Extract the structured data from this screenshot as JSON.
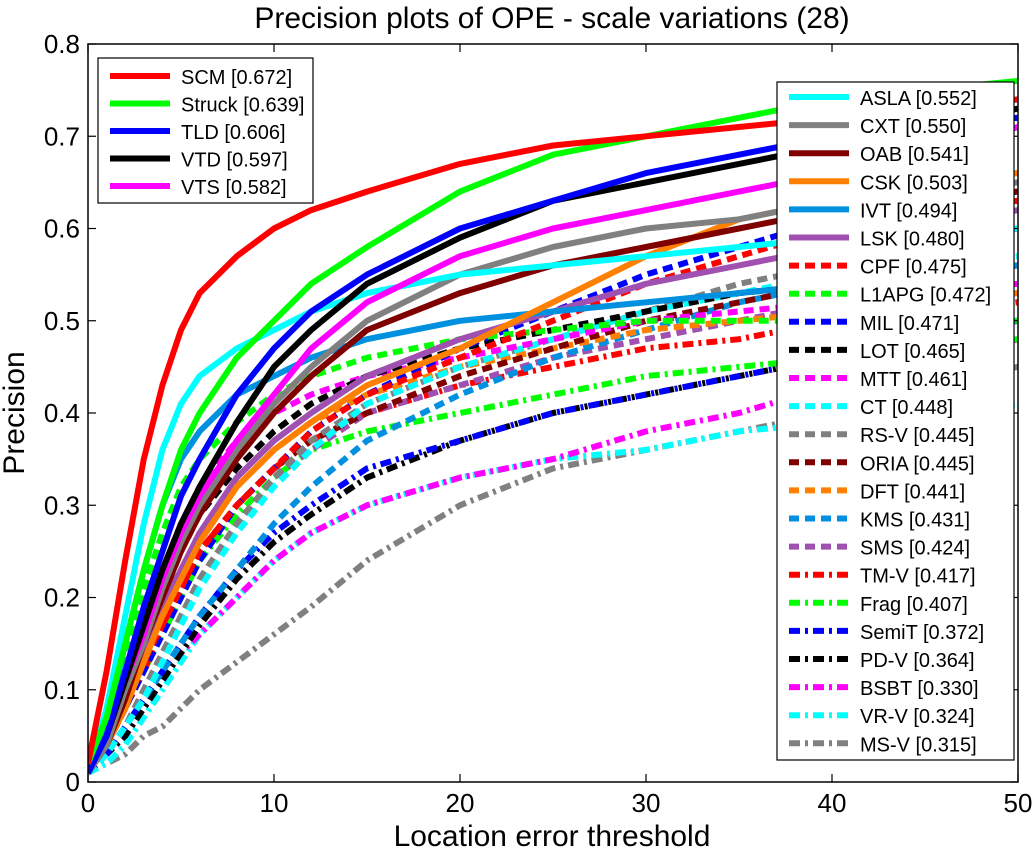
{
  "chart_data": {
    "type": "line",
    "title": "Precision plots of OPE - scale variations (28)",
    "xlabel": "Location error threshold",
    "ylabel": "Precision",
    "xlim": [
      0,
      50
    ],
    "ylim": [
      0,
      0.8
    ],
    "xticks": [
      "0",
      "10",
      "20",
      "30",
      "40",
      "50"
    ],
    "yticks": [
      "0",
      "0.1",
      "0.2",
      "0.3",
      "0.4",
      "0.5",
      "0.6",
      "0.7",
      "0.8"
    ],
    "legend_left": "top-left",
    "legend_right": "top-right",
    "x": [
      0,
      1,
      2,
      3,
      4,
      5,
      6,
      8,
      10,
      12,
      15,
      20,
      25,
      30,
      35,
      40,
      45,
      50
    ],
    "series": [
      {
        "name": "SCM",
        "legend": "SCM [0.672]",
        "color": "#ff0000",
        "style": "solid",
        "values": [
          0.02,
          0.12,
          0.24,
          0.35,
          0.43,
          0.49,
          0.53,
          0.57,
          0.6,
          0.62,
          0.64,
          0.67,
          0.69,
          0.7,
          0.71,
          0.72,
          0.73,
          0.74
        ]
      },
      {
        "name": "Struck",
        "legend": "Struck [0.639]",
        "color": "#00ff00",
        "style": "solid",
        "values": [
          0.02,
          0.07,
          0.15,
          0.23,
          0.3,
          0.36,
          0.4,
          0.46,
          0.5,
          0.54,
          0.58,
          0.64,
          0.68,
          0.7,
          0.72,
          0.74,
          0.75,
          0.76
        ]
      },
      {
        "name": "TLD",
        "legend": "TLD [0.606]",
        "color": "#0000ff",
        "style": "solid",
        "values": [
          0.01,
          0.05,
          0.12,
          0.19,
          0.25,
          0.31,
          0.35,
          0.42,
          0.47,
          0.51,
          0.55,
          0.6,
          0.63,
          0.66,
          0.68,
          0.7,
          0.71,
          0.72
        ]
      },
      {
        "name": "VTD",
        "legend": "VTD [0.597]",
        "color": "#000000",
        "style": "solid",
        "values": [
          0.01,
          0.05,
          0.11,
          0.17,
          0.23,
          0.28,
          0.32,
          0.39,
          0.45,
          0.49,
          0.54,
          0.59,
          0.63,
          0.65,
          0.67,
          0.69,
          0.71,
          0.73
        ]
      },
      {
        "name": "VTS",
        "legend": "VTS [0.582]",
        "color": "#ff00ff",
        "style": "solid",
        "values": [
          0.01,
          0.05,
          0.11,
          0.16,
          0.22,
          0.27,
          0.31,
          0.37,
          0.42,
          0.47,
          0.52,
          0.57,
          0.6,
          0.62,
          0.64,
          0.66,
          0.68,
          0.71
        ]
      },
      {
        "name": "ASLA",
        "legend": "ASLA [0.552]",
        "color": "#00ffff",
        "style": "solid",
        "values": [
          0.01,
          0.08,
          0.18,
          0.28,
          0.36,
          0.41,
          0.44,
          0.47,
          0.49,
          0.51,
          0.53,
          0.55,
          0.56,
          0.57,
          0.58,
          0.59,
          0.6,
          0.6
        ]
      },
      {
        "name": "CXT",
        "legend": "CXT [0.550]",
        "color": "#808080",
        "style": "solid",
        "values": [
          0.01,
          0.04,
          0.1,
          0.15,
          0.21,
          0.26,
          0.3,
          0.36,
          0.41,
          0.45,
          0.5,
          0.55,
          0.58,
          0.6,
          0.61,
          0.63,
          0.64,
          0.65
        ]
      },
      {
        "name": "OAB",
        "legend": "OAB [0.541]",
        "color": "#800000",
        "style": "solid",
        "values": [
          0.01,
          0.04,
          0.09,
          0.15,
          0.2,
          0.25,
          0.29,
          0.35,
          0.4,
          0.44,
          0.49,
          0.53,
          0.56,
          0.58,
          0.6,
          0.62,
          0.63,
          0.64
        ]
      },
      {
        "name": "CSK",
        "legend": "CSK [0.503]",
        "color": "#ff8000",
        "style": "solid",
        "values": [
          0.01,
          0.04,
          0.08,
          0.13,
          0.18,
          0.22,
          0.26,
          0.32,
          0.36,
          0.39,
          0.43,
          0.47,
          0.52,
          0.57,
          0.61,
          0.63,
          0.65,
          0.66
        ]
      },
      {
        "name": "IVT",
        "legend": "IVT [0.494]",
        "color": "#0090e0",
        "style": "solid",
        "values": [
          0.01,
          0.06,
          0.15,
          0.23,
          0.3,
          0.35,
          0.38,
          0.42,
          0.44,
          0.46,
          0.48,
          0.5,
          0.51,
          0.52,
          0.53,
          0.54,
          0.55,
          0.56
        ]
      },
      {
        "name": "LSK",
        "legend": "LSK [0.480]",
        "color": "#a050b0",
        "style": "solid",
        "values": [
          0.01,
          0.04,
          0.09,
          0.14,
          0.19,
          0.23,
          0.27,
          0.33,
          0.37,
          0.4,
          0.44,
          0.48,
          0.51,
          0.54,
          0.56,
          0.58,
          0.6,
          0.62
        ]
      },
      {
        "name": "CPF",
        "legend": "CPF [0.475]",
        "color": "#ff0000",
        "style": "dash",
        "values": [
          0.01,
          0.04,
          0.08,
          0.13,
          0.17,
          0.21,
          0.25,
          0.3,
          0.34,
          0.38,
          0.42,
          0.46,
          0.5,
          0.54,
          0.57,
          0.6,
          0.62,
          0.63
        ]
      },
      {
        "name": "L1APG",
        "legend": "L1APG [0.472]",
        "color": "#00ff00",
        "style": "dash",
        "values": [
          0.01,
          0.06,
          0.14,
          0.21,
          0.27,
          0.32,
          0.35,
          0.39,
          0.42,
          0.44,
          0.46,
          0.48,
          0.49,
          0.5,
          0.5,
          0.5,
          0.5,
          0.5
        ]
      },
      {
        "name": "MIL",
        "legend": "MIL [0.471]",
        "color": "#0000ff",
        "style": "dash",
        "values": [
          0.01,
          0.04,
          0.08,
          0.12,
          0.16,
          0.2,
          0.24,
          0.3,
          0.34,
          0.38,
          0.42,
          0.47,
          0.51,
          0.55,
          0.58,
          0.61,
          0.63,
          0.64
        ]
      },
      {
        "name": "LOT",
        "legend": "LOT [0.465]",
        "color": "#000000",
        "style": "dash",
        "values": [
          0.01,
          0.05,
          0.1,
          0.15,
          0.2,
          0.25,
          0.29,
          0.34,
          0.38,
          0.41,
          0.44,
          0.47,
          0.49,
          0.51,
          0.53,
          0.54,
          0.55,
          0.56
        ]
      },
      {
        "name": "MTT",
        "legend": "MTT [0.461]",
        "color": "#ff00ff",
        "style": "dash",
        "values": [
          0.01,
          0.05,
          0.11,
          0.17,
          0.23,
          0.28,
          0.32,
          0.37,
          0.4,
          0.42,
          0.44,
          0.46,
          0.48,
          0.5,
          0.51,
          0.52,
          0.53,
          0.54
        ]
      },
      {
        "name": "CT",
        "legend": "CT [0.448]",
        "color": "#00ffff",
        "style": "dash",
        "values": [
          0.01,
          0.03,
          0.06,
          0.09,
          0.13,
          0.17,
          0.21,
          0.27,
          0.32,
          0.36,
          0.41,
          0.45,
          0.48,
          0.51,
          0.53,
          0.55,
          0.56,
          0.57
        ]
      },
      {
        "name": "RS-V",
        "legend": "RS-V [0.445]",
        "color": "#808080",
        "style": "dash",
        "values": [
          0.01,
          0.03,
          0.06,
          0.1,
          0.14,
          0.18,
          0.22,
          0.28,
          0.33,
          0.37,
          0.41,
          0.45,
          0.48,
          0.51,
          0.54,
          0.56,
          0.58,
          0.6
        ]
      },
      {
        "name": "ORIA",
        "legend": "ORIA [0.445]",
        "color": "#800000",
        "style": "dash",
        "values": [
          0.01,
          0.04,
          0.08,
          0.13,
          0.17,
          0.21,
          0.25,
          0.3,
          0.34,
          0.37,
          0.4,
          0.44,
          0.47,
          0.5,
          0.52,
          0.54,
          0.55,
          0.56
        ]
      },
      {
        "name": "DFT",
        "legend": "DFT [0.441]",
        "color": "#ff8000",
        "style": "dash",
        "values": [
          0.01,
          0.04,
          0.09,
          0.14,
          0.19,
          0.23,
          0.27,
          0.32,
          0.36,
          0.39,
          0.42,
          0.45,
          0.47,
          0.49,
          0.5,
          0.51,
          0.52,
          0.53
        ]
      },
      {
        "name": "KMS",
        "legend": "KMS [0.431]",
        "color": "#0090e0",
        "style": "dash",
        "values": [
          0.01,
          0.03,
          0.06,
          0.09,
          0.12,
          0.15,
          0.18,
          0.23,
          0.28,
          0.32,
          0.37,
          0.42,
          0.46,
          0.49,
          0.52,
          0.54,
          0.56,
          0.58
        ]
      },
      {
        "name": "SMS",
        "legend": "SMS [0.424]",
        "color": "#a050b0",
        "style": "dash",
        "values": [
          0.01,
          0.03,
          0.06,
          0.1,
          0.14,
          0.18,
          0.22,
          0.28,
          0.33,
          0.36,
          0.4,
          0.43,
          0.46,
          0.48,
          0.5,
          0.52,
          0.53,
          0.54
        ]
      },
      {
        "name": "TM-V",
        "legend": "TM-V [0.417]",
        "color": "#ff0000",
        "style": "dashdot",
        "values": [
          0.01,
          0.04,
          0.08,
          0.12,
          0.17,
          0.21,
          0.25,
          0.3,
          0.34,
          0.37,
          0.4,
          0.43,
          0.45,
          0.47,
          0.48,
          0.5,
          0.51,
          0.52
        ]
      },
      {
        "name": "Frag",
        "legend": "Frag [0.407]",
        "color": "#00ff00",
        "style": "dashdot",
        "values": [
          0.01,
          0.04,
          0.08,
          0.12,
          0.16,
          0.2,
          0.24,
          0.29,
          0.33,
          0.36,
          0.38,
          0.4,
          0.42,
          0.44,
          0.45,
          0.46,
          0.47,
          0.48
        ]
      },
      {
        "name": "SemiT",
        "legend": "SemiT [0.372]",
        "color": "#0000ff",
        "style": "dashdot",
        "values": [
          0.01,
          0.03,
          0.06,
          0.09,
          0.12,
          0.15,
          0.18,
          0.23,
          0.27,
          0.3,
          0.34,
          0.37,
          0.4,
          0.42,
          0.44,
          0.46,
          0.48,
          0.5
        ]
      },
      {
        "name": "PD-V",
        "legend": "PD-V [0.364]",
        "color": "#000000",
        "style": "dashdot",
        "values": [
          0.01,
          0.03,
          0.05,
          0.08,
          0.11,
          0.14,
          0.17,
          0.22,
          0.26,
          0.29,
          0.33,
          0.37,
          0.4,
          0.42,
          0.44,
          0.46,
          0.48,
          0.5
        ]
      },
      {
        "name": "BSBT",
        "legend": "BSBT [0.330]",
        "color": "#ff00ff",
        "style": "dashdot",
        "values": [
          0.01,
          0.03,
          0.05,
          0.08,
          0.11,
          0.14,
          0.16,
          0.2,
          0.24,
          0.27,
          0.3,
          0.33,
          0.35,
          0.38,
          0.4,
          0.43,
          0.45,
          0.48
        ]
      },
      {
        "name": "VR-V",
        "legend": "VR-V [0.324]",
        "color": "#00ffff",
        "style": "dashdot",
        "values": [
          0.01,
          0.02,
          0.04,
          0.07,
          0.1,
          0.13,
          0.16,
          0.2,
          0.24,
          0.27,
          0.3,
          0.33,
          0.35,
          0.36,
          0.38,
          0.39,
          0.4,
          0.41
        ]
      },
      {
        "name": "MS-V",
        "legend": "MS-V [0.315]",
        "color": "#808080",
        "style": "dashdot",
        "values": [
          0.01,
          0.02,
          0.03,
          0.05,
          0.06,
          0.08,
          0.1,
          0.13,
          0.16,
          0.19,
          0.24,
          0.3,
          0.34,
          0.36,
          0.38,
          0.4,
          0.43,
          0.45
        ]
      }
    ]
  }
}
